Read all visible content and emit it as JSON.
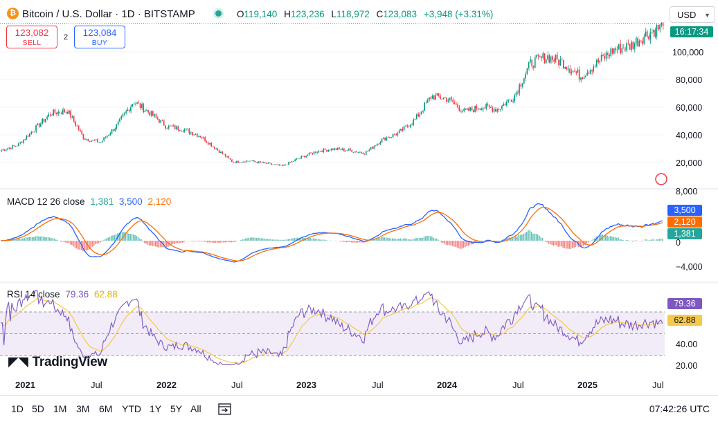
{
  "header": {
    "coin_icon": "bitcoin-icon",
    "coin_glyph": "₿",
    "symbol": "Bitcoin / U.S. Dollar · 1D · BITSTAMP",
    "ohlc": {
      "o_label": "O",
      "o": "119,140",
      "h_label": "H",
      "h": "123,236",
      "l_label": "L",
      "l": "118,972",
      "c_label": "C",
      "c": "123,083",
      "change": "+3,948 (+3.31%)"
    },
    "currency": "USD"
  },
  "trade": {
    "sell_price": "123,082",
    "sell_label": "SELL",
    "spread": "2",
    "buy_price": "123,084",
    "buy_label": "BUY"
  },
  "price_scale": {
    "ticks": [
      "100,000",
      "80,000",
      "60,000",
      "40,000",
      "20,000"
    ],
    "countdown": "16:17:34"
  },
  "macd": {
    "label": "MACD 12 26 close",
    "v1": "1,381",
    "v2": "3,500",
    "v3": "2,120",
    "ticks": [
      "8,000",
      "0",
      "−4,000"
    ],
    "colors": {
      "macd": "#2962ff",
      "signal": "#ff6d00",
      "hist_pos": "#26a69a",
      "hist_neg": "#ef5350"
    }
  },
  "rsi": {
    "label": "RSI 14 close",
    "v1": "79.36",
    "v2": "62.88",
    "ticks": [
      "40.00",
      "20.00"
    ],
    "colors": {
      "rsi": "#7e57c2",
      "ma": "#f7c948",
      "band": "#ede7f6"
    }
  },
  "time_axis": [
    {
      "text": "2021",
      "bold": true
    },
    {
      "text": "Jul",
      "bold": false
    },
    {
      "text": "2022",
      "bold": true
    },
    {
      "text": "Jul",
      "bold": false
    },
    {
      "text": "2023",
      "bold": true
    },
    {
      "text": "Jul",
      "bold": false
    },
    {
      "text": "2024",
      "bold": true
    },
    {
      "text": "Jul",
      "bold": false
    },
    {
      "text": "2025",
      "bold": true
    },
    {
      "text": "Jul",
      "bold": false
    }
  ],
  "timeframes": [
    "1D",
    "5D",
    "1M",
    "3M",
    "6M",
    "YTD",
    "1Y",
    "5Y",
    "All"
  ],
  "clock": "07:42:26 UTC",
  "logo": "TradingView",
  "colors": {
    "up": "#089981",
    "down": "#f23645",
    "grid": "#f0f3fa"
  },
  "chart_data": {
    "type": "candlestick",
    "series": [
      {
        "name": "BTC",
        "values": [
          29000,
          33000,
          45000,
          57000,
          59000,
          38000,
          35000,
          48000,
          66000,
          57000,
          47000,
          45000,
          40000,
          30000,
          20000,
          21000,
          19000,
          17000,
          23000,
          28000,
          30000,
          29000,
          27000,
          37000,
          42000,
          52000,
          70000,
          68000,
          58000,
          62000,
          60000,
          70000,
          95000,
          100000,
          95000,
          85000,
          95000,
          105000,
          108000,
          117000,
          123083
        ]
      }
    ]
  }
}
